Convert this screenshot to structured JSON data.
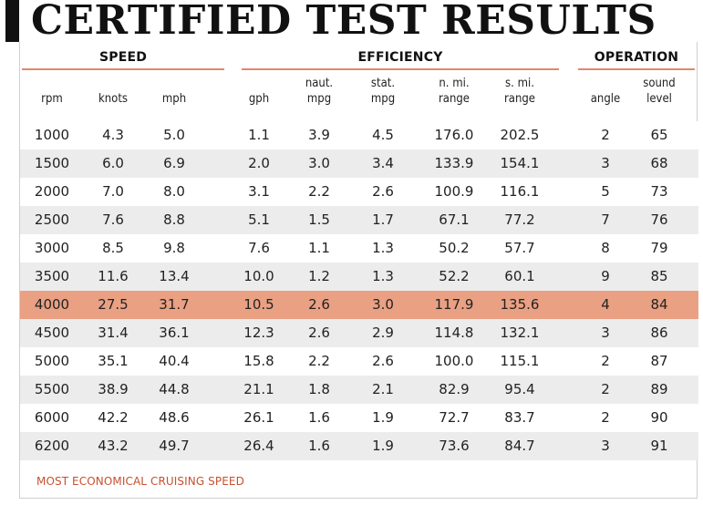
{
  "title": "CERTIFIED TEST RESULTS",
  "groups": {
    "speed": "SPEED",
    "efficiency": "EFFICIENCY",
    "operation": "OPERATION"
  },
  "columns": [
    {
      "key": "rpm",
      "line1": "",
      "line2": "rpm"
    },
    {
      "key": "knots",
      "line1": "",
      "line2": "knots"
    },
    {
      "key": "mph",
      "line1": "",
      "line2": "mph"
    },
    {
      "key": "gph",
      "line1": "",
      "line2": "gph"
    },
    {
      "key": "naut_mpg",
      "line1": "naut.",
      "line2": "mpg"
    },
    {
      "key": "stat_mpg",
      "line1": "stat.",
      "line2": "mpg"
    },
    {
      "key": "nmi_range",
      "line1": "n. mi.",
      "line2": "range"
    },
    {
      "key": "smi_range",
      "line1": "s. mi.",
      "line2": "range"
    },
    {
      "key": "angle",
      "line1": "",
      "line2": "angle"
    },
    {
      "key": "sound_level",
      "line1": "sound",
      "line2": "level"
    }
  ],
  "rows": [
    {
      "rpm": "1000",
      "knots": "4.3",
      "mph": "5.0",
      "gph": "1.1",
      "naut_mpg": "3.9",
      "stat_mpg": "4.5",
      "nmi_range": "176.0",
      "smi_range": "202.5",
      "angle": "2",
      "sound_level": "65"
    },
    {
      "rpm": "1500",
      "knots": "6.0",
      "mph": "6.9",
      "gph": "2.0",
      "naut_mpg": "3.0",
      "stat_mpg": "3.4",
      "nmi_range": "133.9",
      "smi_range": "154.1",
      "angle": "3",
      "sound_level": "68"
    },
    {
      "rpm": "2000",
      "knots": "7.0",
      "mph": "8.0",
      "gph": "3.1",
      "naut_mpg": "2.2",
      "stat_mpg": "2.6",
      "nmi_range": "100.9",
      "smi_range": "116.1",
      "angle": "5",
      "sound_level": "73"
    },
    {
      "rpm": "2500",
      "knots": "7.6",
      "mph": "8.8",
      "gph": "5.1",
      "naut_mpg": "1.5",
      "stat_mpg": "1.7",
      "nmi_range": "67.1",
      "smi_range": "77.2",
      "angle": "7",
      "sound_level": "76"
    },
    {
      "rpm": "3000",
      "knots": "8.5",
      "mph": "9.8",
      "gph": "7.6",
      "naut_mpg": "1.1",
      "stat_mpg": "1.3",
      "nmi_range": "50.2",
      "smi_range": "57.7",
      "angle": "8",
      "sound_level": "79"
    },
    {
      "rpm": "3500",
      "knots": "11.6",
      "mph": "13.4",
      "gph": "10.0",
      "naut_mpg": "1.2",
      "stat_mpg": "1.3",
      "nmi_range": "52.2",
      "smi_range": "60.1",
      "angle": "9",
      "sound_level": "85"
    },
    {
      "rpm": "4000",
      "knots": "27.5",
      "mph": "31.7",
      "gph": "10.5",
      "naut_mpg": "2.6",
      "stat_mpg": "3.0",
      "nmi_range": "117.9",
      "smi_range": "135.6",
      "angle": "4",
      "sound_level": "84",
      "highlight": true
    },
    {
      "rpm": "4500",
      "knots": "31.4",
      "mph": "36.1",
      "gph": "12.3",
      "naut_mpg": "2.6",
      "stat_mpg": "2.9",
      "nmi_range": "114.8",
      "smi_range": "132.1",
      "angle": "3",
      "sound_level": "86"
    },
    {
      "rpm": "5000",
      "knots": "35.1",
      "mph": "40.4",
      "gph": "15.8",
      "naut_mpg": "2.2",
      "stat_mpg": "2.6",
      "nmi_range": "100.0",
      "smi_range": "115.1",
      "angle": "2",
      "sound_level": "87"
    },
    {
      "rpm": "5500",
      "knots": "38.9",
      "mph": "44.8",
      "gph": "21.1",
      "naut_mpg": "1.8",
      "stat_mpg": "2.1",
      "nmi_range": "82.9",
      "smi_range": "95.4",
      "angle": "2",
      "sound_level": "89"
    },
    {
      "rpm": "6000",
      "knots": "42.2",
      "mph": "48.6",
      "gph": "26.1",
      "naut_mpg": "1.6",
      "stat_mpg": "1.9",
      "nmi_range": "72.7",
      "smi_range": "83.7",
      "angle": "2",
      "sound_level": "90"
    },
    {
      "rpm": "6200",
      "knots": "43.2",
      "mph": "49.7",
      "gph": "26.4",
      "naut_mpg": "1.6",
      "stat_mpg": "1.9",
      "nmi_range": "73.6",
      "smi_range": "84.7",
      "angle": "3",
      "sound_level": "91"
    }
  ],
  "footnote": "MOST ECONOMICAL CRUISING SPEED",
  "colors": {
    "accent": "#e0876c",
    "highlight_row": "#e9a083",
    "footnote": "#c8502e",
    "stripe": "#ececec"
  }
}
